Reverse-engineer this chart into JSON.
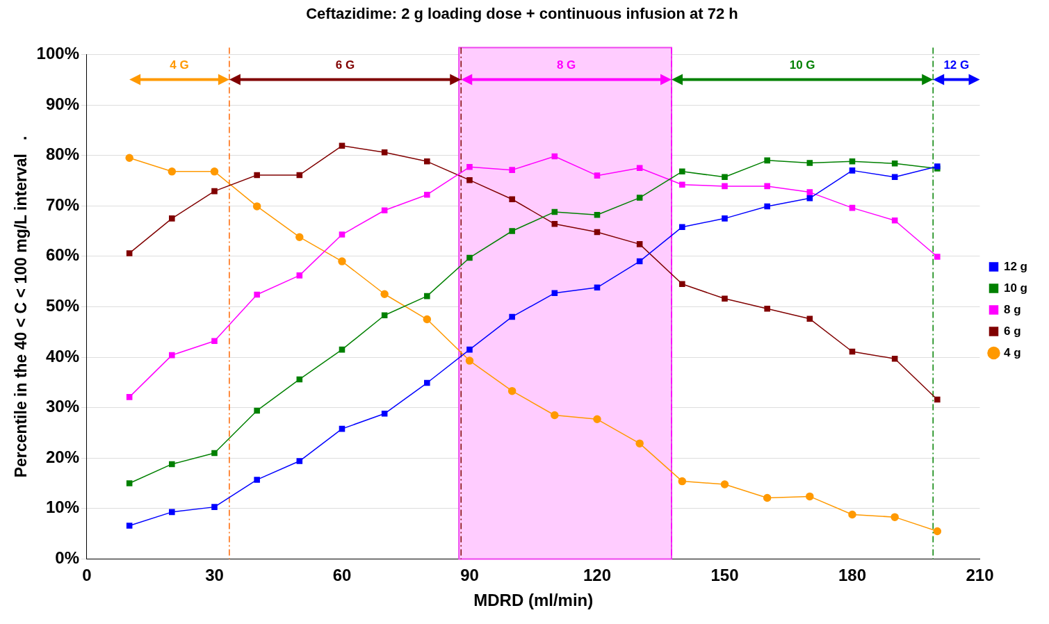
{
  "chart_data": {
    "type": "line",
    "title": "Ceftazidime: 2 g loading dose + continuous infusion at 72 h",
    "xlabel": "MDRD (ml/min)",
    "ylabel": "Percentile in the 40 < C < 100 mg/L interval   .",
    "x": [
      10,
      20,
      30,
      40,
      50,
      60,
      70,
      80,
      90,
      100,
      110,
      120,
      130,
      140,
      150,
      160,
      170,
      180,
      190,
      200
    ],
    "xlim": [
      0,
      210
    ],
    "xticks": [
      0,
      30,
      60,
      90,
      120,
      150,
      180,
      210
    ],
    "ylim": [
      0,
      100
    ],
    "yticks": [
      {
        "value": 0,
        "label": "0%"
      },
      {
        "value": 10,
        "label": "10%"
      },
      {
        "value": 20,
        "label": "20%"
      },
      {
        "value": 30,
        "label": "30%"
      },
      {
        "value": 40,
        "label": "40%"
      },
      {
        "value": 50,
        "label": "50%"
      },
      {
        "value": 60,
        "label": "60%"
      },
      {
        "value": 70,
        "label": "70%"
      },
      {
        "value": 80,
        "label": "80%"
      },
      {
        "value": 90,
        "label": "90%"
      },
      {
        "value": 100,
        "label": "100%"
      }
    ],
    "grid": "y",
    "legend": "right",
    "line_style": "solid",
    "series": [
      {
        "name": "4 g",
        "color": "#ff9900",
        "marker": "circle",
        "values": [
          79.5,
          76.8,
          76.8,
          69.9,
          63.8,
          59.0,
          52.5,
          47.5,
          39.3,
          33.3,
          28.5,
          27.7,
          22.9,
          15.4,
          14.8,
          12.1,
          12.4,
          8.8,
          8.3,
          5.5
        ]
      },
      {
        "name": "6 g",
        "color": "#800000",
        "marker": "square",
        "values": [
          60.6,
          67.5,
          72.9,
          76.1,
          76.1,
          81.9,
          80.6,
          78.8,
          75.1,
          71.3,
          66.4,
          64.8,
          62.4,
          54.5,
          51.6,
          49.6,
          47.6,
          41.1,
          39.7,
          31.6
        ]
      },
      {
        "name": "8 g",
        "color": "#ff00ff",
        "marker": "square",
        "values": [
          32.1,
          40.4,
          43.2,
          52.4,
          56.2,
          64.3,
          69.1,
          72.2,
          77.7,
          77.1,
          79.8,
          76.0,
          77.5,
          74.2,
          73.9,
          73.9,
          72.7,
          69.6,
          67.1,
          59.9
        ]
      },
      {
        "name": "10 g",
        "color": "#008000",
        "marker": "square",
        "values": [
          15.0,
          18.8,
          21.0,
          29.4,
          35.6,
          41.5,
          48.3,
          52.1,
          59.7,
          65.0,
          68.8,
          68.2,
          71.6,
          76.8,
          75.7,
          79.0,
          78.5,
          78.8,
          78.4,
          77.4
        ]
      },
      {
        "name": "12 g",
        "color": "#0000ff",
        "marker": "square",
        "values": [
          6.6,
          9.3,
          10.3,
          15.7,
          19.4,
          25.8,
          28.8,
          34.9,
          41.5,
          48.0,
          52.7,
          53.8,
          59.0,
          65.8,
          67.5,
          69.9,
          71.5,
          77.0,
          75.7,
          77.8
        ]
      }
    ],
    "bands": [
      {
        "axis": "x",
        "from": 87.5,
        "to": 137.5,
        "color": "#ffccff"
      }
    ],
    "ref_lines": [
      {
        "axis": "x",
        "value": 33.5,
        "color": "#ff6600",
        "line_style": "dashed"
      },
      {
        "axis": "x",
        "value": 88,
        "color": "#800000",
        "line_style": "dashed"
      },
      {
        "axis": "x",
        "value": 137.5,
        "color": "#ff00ff",
        "line_style": "dashed"
      },
      {
        "axis": "x",
        "value": 199,
        "color": "#008000",
        "line_style": "dashed"
      }
    ],
    "annotations": [
      "4 G",
      "6 G",
      "8 G",
      "10 G",
      "12 G"
    ]
  }
}
